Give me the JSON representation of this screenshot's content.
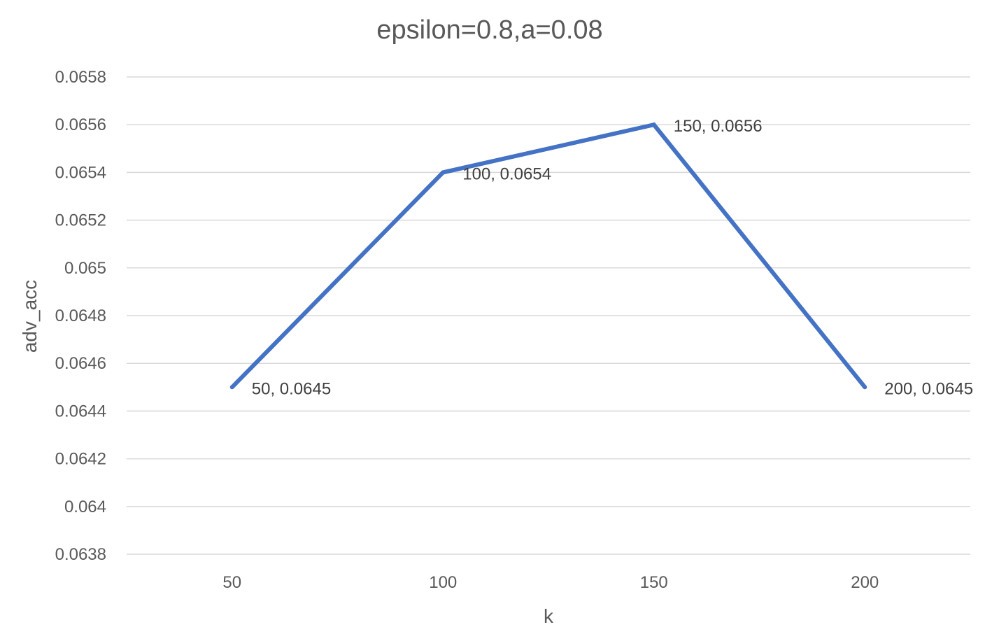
{
  "chart_data": {
    "type": "line",
    "title": "epsilon=0.8,a=0.08",
    "xlabel": "k",
    "ylabel": "adv_acc",
    "categories": [
      "50",
      "100",
      "150",
      "200"
    ],
    "series": [
      {
        "values": [
          0.0645,
          0.0654,
          0.0656,
          0.0645
        ]
      }
    ],
    "data_labels": [
      "50, 0.0645",
      "100, 0.0654",
      "150, 0.0656",
      "200, 0.0645"
    ],
    "y_ticks": [
      "0.0658",
      "0.0656",
      "0.0654",
      "0.0652",
      "0.065",
      "0.0648",
      "0.0646",
      "0.0644",
      "0.0642",
      "0.064",
      "0.0638"
    ],
    "y_tick_values": [
      0.0658,
      0.0656,
      0.0654,
      0.0652,
      0.065,
      0.0648,
      0.0646,
      0.0644,
      0.0642,
      0.064,
      0.0638
    ],
    "ylim": [
      0.0638,
      0.0658
    ],
    "grid": true,
    "legend": "none",
    "colors": {
      "series": "#4472c4",
      "grid": "#d9d9d9",
      "text": "#595959"
    }
  }
}
